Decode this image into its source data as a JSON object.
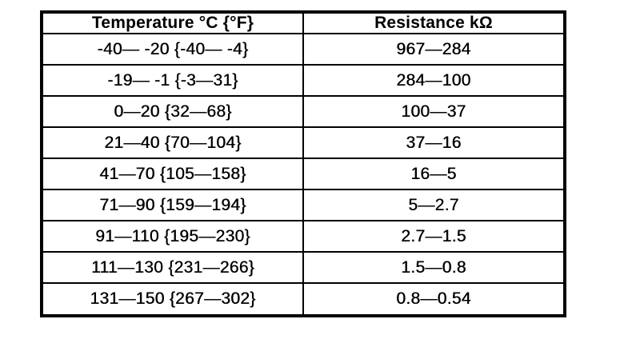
{
  "page": {
    "background_color": "#ffffff",
    "ink_color": "#000000"
  },
  "table": {
    "columns": [
      {
        "label": "Temperature °C {°F}"
      },
      {
        "label": "Resistance kΩ"
      }
    ],
    "rows": [
      {
        "temperature": "-40— -20 {-40— -4}",
        "resistance": "967—284"
      },
      {
        "temperature": "-19— -1 {-3—31}",
        "resistance": "284—100"
      },
      {
        "temperature": "0—20 {32—68}",
        "resistance": "100—37"
      },
      {
        "temperature": "21—40 {70—104}",
        "resistance": "37—16"
      },
      {
        "temperature": "41—70 {105—158}",
        "resistance": "16—5"
      },
      {
        "temperature": "71—90 {159—194}",
        "resistance": "5—2.7"
      },
      {
        "temperature": "91—110 {195—230}",
        "resistance": "2.7—1.5"
      },
      {
        "temperature": "111—130 {231—266}",
        "resistance": "1.5—0.8"
      },
      {
        "temperature": "131—150 {267—302}",
        "resistance": "0.8—0.54"
      }
    ]
  }
}
